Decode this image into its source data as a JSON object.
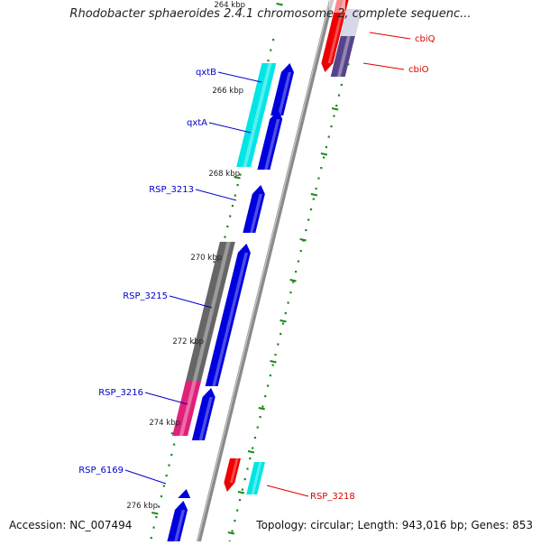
{
  "title": "Rhodobacter sphaeroides 2.4.1 chromosome 2, complete sequenc...",
  "footer": {
    "accession": "Accession: NC_007494",
    "summary": "Topology: circular; Length: 943,016 bp; Genes: 853"
  },
  "ticks": [
    {
      "text": "264 kbp"
    },
    {
      "text": "266 kbp"
    },
    {
      "text": "268 kbp"
    },
    {
      "text": "270 kbp"
    },
    {
      "text": "272 kbp"
    },
    {
      "text": "274 kbp"
    },
    {
      "text": "276 kbp"
    }
  ],
  "genes": [
    {
      "text": "cbiQ",
      "strand": "reverse",
      "color": "#e00000"
    },
    {
      "text": "cbiO",
      "strand": "reverse",
      "color": "#e00000"
    },
    {
      "text": "qxtB",
      "strand": "forward",
      "color": "#0000cc"
    },
    {
      "text": "qxtA",
      "strand": "forward",
      "color": "#0000cc"
    },
    {
      "text": "RSP_3213",
      "strand": "forward",
      "color": "#0000cc"
    },
    {
      "text": "RSP_3215",
      "strand": "forward",
      "color": "#0000cc"
    },
    {
      "text": "RSP_3216",
      "strand": "forward",
      "color": "#0000cc"
    },
    {
      "text": "RSP_6169",
      "strand": "forward",
      "color": "#0000cc"
    },
    {
      "text": "RSP_3218",
      "strand": "reverse",
      "color": "#e00000"
    }
  ],
  "colors": {
    "forward_gene": "#0000dd",
    "reverse_gene": "#ee0000",
    "backbone": "#888888",
    "tick": "#1a8a1a",
    "cyan_track": "#00e5e5",
    "gray_track": "#666666",
    "pink_track": "#e0207a",
    "purple_track": "#55448a"
  }
}
